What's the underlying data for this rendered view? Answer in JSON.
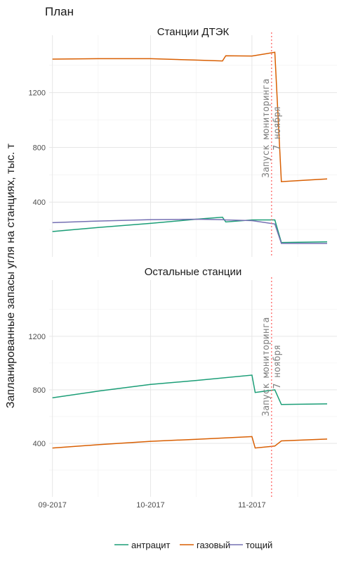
{
  "chart_data": {
    "type": "line",
    "title": "План",
    "ylabel": "Запланированные запасы угля на станциях, тыс. т",
    "xlabel": "",
    "x_ticks": [
      "09-2017",
      "10-2017",
      "11-2017"
    ],
    "y_ticks": [
      400,
      800,
      1200
    ],
    "ylim": [
      0,
      1620
    ],
    "xlim": [
      "2017-08-31",
      "2017-11-27"
    ],
    "grid": true,
    "legend_position": "bottom",
    "colors": {
      "антрацит": "#1b9e77",
      "газовый": "#d95f02",
      "тощий": "#7570b3"
    },
    "annotation": {
      "date": "2017-11-07",
      "text": "Запуск мониторинга\n7 ноября",
      "line_color": "#ff6f6f"
    },
    "panels": [
      {
        "name": "Станции ДТЭК",
        "series": [
          {
            "name": "антрацит",
            "x": [
              "2017-09-01",
              "2017-09-15",
              "2017-10-01",
              "2017-10-15",
              "2017-10-23",
              "2017-10-24",
              "2017-11-01",
              "2017-11-08",
              "2017-11-10",
              "2017-11-24"
            ],
            "values": [
              185,
              215,
              245,
              275,
              290,
              255,
              270,
              270,
              105,
              110
            ]
          },
          {
            "name": "газовый",
            "x": [
              "2017-09-01",
              "2017-09-15",
              "2017-10-01",
              "2017-10-15",
              "2017-10-23",
              "2017-10-24",
              "2017-11-01",
              "2017-11-08",
              "2017-11-10",
              "2017-11-24"
            ],
            "values": [
              1445,
              1448,
              1448,
              1438,
              1432,
              1470,
              1468,
              1495,
              550,
              570
            ]
          },
          {
            "name": "тощий",
            "x": [
              "2017-09-01",
              "2017-09-15",
              "2017-10-01",
              "2017-10-15",
              "2017-10-23",
              "2017-10-24",
              "2017-11-01",
              "2017-11-08",
              "2017-11-10",
              "2017-11-24"
            ],
            "values": [
              250,
              262,
              272,
              275,
              272,
              270,
              265,
              240,
              98,
              98
            ]
          }
        ]
      },
      {
        "name": "Остальные станции",
        "series": [
          {
            "name": "антрацит",
            "x": [
              "2017-09-01",
              "2017-09-15",
              "2017-10-01",
              "2017-10-15",
              "2017-11-01",
              "2017-11-02",
              "2017-11-08",
              "2017-11-10",
              "2017-11-24"
            ],
            "values": [
              740,
              790,
              840,
              870,
              910,
              780,
              800,
              690,
              695
            ]
          },
          {
            "name": "газовый",
            "x": [
              "2017-09-01",
              "2017-09-15",
              "2017-10-01",
              "2017-10-15",
              "2017-11-01",
              "2017-11-02",
              "2017-11-08",
              "2017-11-10",
              "2017-11-24"
            ],
            "values": [
              365,
              390,
              415,
              430,
              450,
              365,
              380,
              418,
              432
            ]
          }
        ]
      }
    ],
    "legend": [
      "антрацит",
      "газовый",
      "тощий"
    ]
  }
}
